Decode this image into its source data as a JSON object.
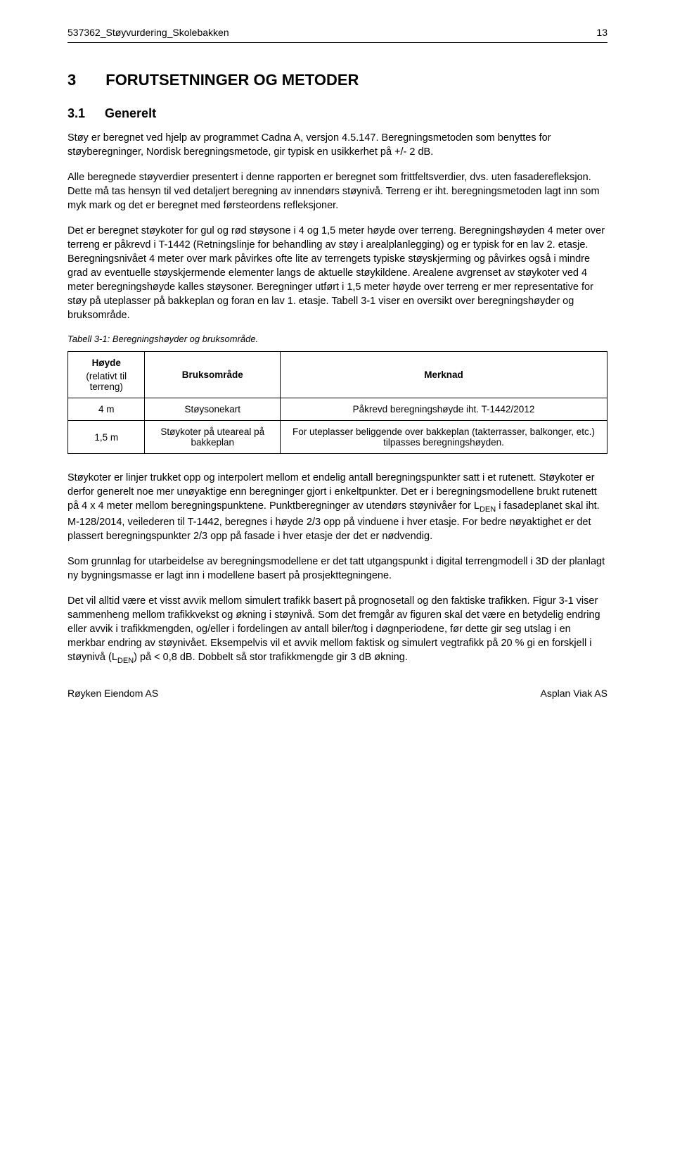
{
  "header": {
    "doc_title": "537362_Støyvurdering_Skolebakken",
    "page_no": "13"
  },
  "sections": {
    "h1_num": "3",
    "h1_title": "FORUTSETNINGER OG METODER",
    "h2_num": "3.1",
    "h2_title": "Generelt"
  },
  "paragraphs": {
    "p1": "Støy er beregnet ved hjelp av programmet Cadna A, versjon 4.5.147. Beregningsmetoden som benyttes for støyberegninger, Nordisk beregningsmetode, gir typisk en usikkerhet på +/- 2 dB.",
    "p2": "Alle beregnede støyverdier presentert i denne rapporten er beregnet som frittfeltsverdier, dvs. uten fasaderefleksjon. Dette må tas hensyn til ved detaljert beregning av innendørs støynivå. Terreng er iht. beregningsmetoden lagt inn som myk mark og det er beregnet med førsteordens refleksjoner.",
    "p3": "Det er beregnet støykoter for gul og rød støysone i 4 og 1,5 meter høyde over terreng. Beregningshøyden 4 meter over terreng er påkrevd i T-1442 (Retningslinje for behandling av støy i arealplanlegging) og er typisk for en lav 2. etasje. Beregningsnivået 4 meter over mark påvirkes ofte lite av terrengets typiske støyskjerming og påvirkes også i mindre grad av eventuelle støyskjermende elementer langs de aktuelle støykildene. Arealene avgrenset av støykoter ved 4 meter beregningshøyde kalles støysoner. Beregninger utført i 1,5 meter høyde over terreng er mer representative for støy på uteplasser på bakkeplan og foran en lav 1. etasje. Tabell 3-1 viser en oversikt over beregningshøyder og bruksområde.",
    "p4": "Støykoter er linjer trukket opp og interpolert mellom et endelig antall beregningspunkter satt i et rutenett. Støykoter er derfor generelt noe mer unøyaktige enn beregninger gjort i enkeltpunkter. Det er i beregningsmodellene brukt rutenett på 4 x 4 meter mellom beregningspunktene. Punktberegninger av utendørs støynivåer for L",
    "p4_sub": "DEN",
    "p4_b": " i fasadeplanet skal iht. M-128/2014, veilederen til T-1442, beregnes i høyde 2/3 opp på vinduene i hver etasje. For bedre nøyaktighet er det plassert beregningspunkter 2/3 opp på fasade i hver etasje der det er nødvendig.",
    "p5": "Som grunnlag for utarbeidelse av beregningsmodellene er det tatt utgangspunkt i digital terrengmodell i 3D der planlagt ny bygningsmasse er lagt inn i modellene basert på prosjekttegningene.",
    "p6": "Det vil alltid være et visst avvik mellom simulert trafikk basert på prognosetall og den faktiske trafikken. Figur 3-1 viser sammenheng mellom trafikkvekst og økning i støynivå. Som det fremgår av figuren skal det være en betydelig endring eller avvik i trafikkmengden, og/eller i fordelingen av antall biler/tog i døgnperiodene, før dette gir seg utslag i en merkbar endring av støynivået. Eksempelvis vil et avvik mellom faktisk og simulert vegtrafikk på 20 % gi en forskjell i støynivå (L",
    "p6_sub": "DEN",
    "p6_b": ") på < 0,8 dB. Dobbelt så stor trafikkmengde gir 3 dB økning."
  },
  "table": {
    "caption": "Tabell 3-1: Beregningshøyder og bruksområde.",
    "col1_header": "Høyde",
    "col1_sub": "(relativt til terreng)",
    "col2_header": "Bruksområde",
    "col3_header": "Merknad",
    "rows": [
      {
        "height": "4 m",
        "use": "Støysonekart",
        "note": "Påkrevd beregningshøyde iht. T-1442/2012"
      },
      {
        "height": "1,5 m",
        "use": "Støykoter på uteareal på bakkeplan",
        "note": "For uteplasser beliggende over bakkeplan (takterrasser, balkonger, etc.) tilpasses beregningshøyden."
      }
    ]
  },
  "footer": {
    "left": "Røyken Eiendom AS",
    "right": "Asplan Viak AS"
  },
  "colors": {
    "text": "#000000",
    "background": "#ffffff",
    "border": "#000000"
  },
  "fonts": {
    "body_size_pt": 11,
    "h1_size_pt": 16,
    "h2_size_pt": 13,
    "caption_size_pt": 10
  }
}
